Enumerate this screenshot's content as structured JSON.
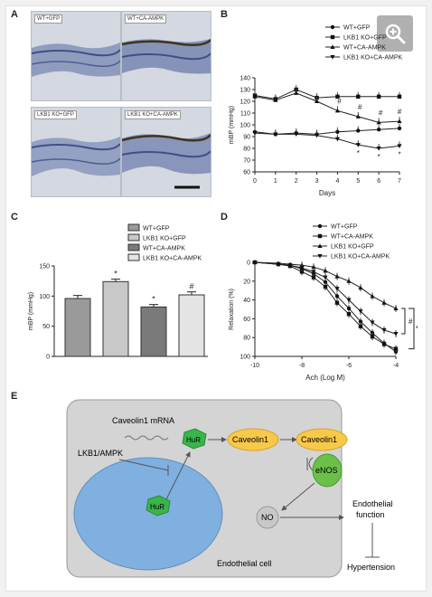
{
  "panels": {
    "A": "A",
    "B": "B",
    "C": "C",
    "D": "D",
    "E": "E"
  },
  "panelA": {
    "images": [
      "WT+GFP",
      "WT+CA-AMPK",
      "LKB1 KO+GFP",
      "LKB1 KO+CA-AMPK"
    ]
  },
  "icons": {
    "zoom": "zoom-in-icon"
  },
  "chart_data": [
    {
      "type": "line",
      "panel": "B",
      "xlabel": "Days",
      "ylabel": "mBP (mmHg)",
      "x": [
        0,
        1,
        2,
        3,
        4,
        5,
        6,
        7
      ],
      "ylim": [
        60,
        140
      ],
      "yticks": [
        60,
        70,
        80,
        90,
        100,
        110,
        120,
        130,
        140
      ],
      "legend": [
        "WT+GFP",
        "LKB1 KO+GFP",
        "WT+CA-AMPK",
        "LKB1 KO+CA-AMPK"
      ],
      "legend_position": "top-right",
      "series": [
        {
          "name": "LKB1 KO+GFP",
          "values": [
            125,
            122,
            130,
            123,
            124,
            124,
            124,
            124
          ]
        },
        {
          "name": "LKB1 KO+CA-AMPK",
          "values": [
            124,
            121,
            127,
            120,
            112,
            107,
            102,
            103
          ]
        },
        {
          "name": "WT+GFP",
          "values": [
            94,
            92,
            93,
            92,
            94,
            95,
            96,
            97
          ]
        },
        {
          "name": "WT+CA-AMPK",
          "values": [
            93,
            92,
            92,
            91,
            88,
            83,
            80,
            82
          ]
        }
      ],
      "annotations_hash": [
        "#",
        "#",
        "#",
        "#"
      ],
      "annotations_star": [
        "*",
        "*",
        "*",
        "*"
      ]
    },
    {
      "type": "bar",
      "panel": "C",
      "ylabel": "mBP (mmHg)",
      "categories": [
        "WT+GFP",
        "LKB1 KO+GFP",
        "WT+CA-AMPK",
        "LKB1 KO+CA-AMPK"
      ],
      "values": [
        96,
        124,
        82,
        102
      ],
      "errors": [
        5,
        4,
        4,
        5
      ],
      "ylim": [
        0,
        150
      ],
      "yticks": [
        0,
        50,
        100,
        150
      ],
      "marks": [
        "",
        "*",
        "*",
        "#"
      ],
      "legend_position": "top-right"
    },
    {
      "type": "line",
      "panel": "D",
      "xlabel": "Ach (Log M)",
      "ylabel": "Relaxation (%)",
      "x": [
        -10,
        -9,
        -8.5,
        -8,
        -7.5,
        -7,
        -6.5,
        -6,
        -5.5,
        -5,
        -4.5,
        -4
      ],
      "xticks": [
        -10,
        -8,
        -6,
        -4
      ],
      "ylim": [
        0,
        100
      ],
      "yticks": [
        0,
        20,
        40,
        60,
        80,
        100
      ],
      "legend": [
        "WT+GFP",
        "WT+CA-AMPK",
        "LKB1 KO+GFP",
        "LKB1 KO+CA-AMPK"
      ],
      "legend_position": "top-right",
      "series": [
        {
          "name": "WT+GFP",
          "values": [
            0,
            2,
            3,
            7,
            12,
            21,
            36,
            49,
            63,
            75,
            86,
            95
          ]
        },
        {
          "name": "WT+CA-AMPK",
          "values": [
            0,
            2,
            4,
            10,
            16,
            26,
            43,
            55,
            68,
            79,
            87,
            92
          ]
        },
        {
          "name": "LKB1 KO+GFP",
          "values": [
            0,
            1,
            2,
            3,
            5,
            9,
            15,
            20,
            27,
            36,
            43,
            49
          ]
        },
        {
          "name": "LKB1 KO+CA-AMPK",
          "values": [
            0,
            2,
            3,
            6,
            10,
            16,
            28,
            40,
            52,
            64,
            72,
            76
          ]
        }
      ],
      "significance": [
        "#",
        "*"
      ]
    }
  ],
  "diagram": {
    "mrna": "Caveolin1 mRNA",
    "hur": "HuR",
    "hur_nucleus": "HuR",
    "lkb1": "LKB1/AMPK",
    "cav1_a": "Caveolin1",
    "cav1_b": "Caveolin1",
    "enos": "eNOS",
    "no": "NO",
    "endo_function": "Endothelial\nfunction",
    "hypertension": "Hypertension",
    "cell": "Endothelial cell"
  }
}
